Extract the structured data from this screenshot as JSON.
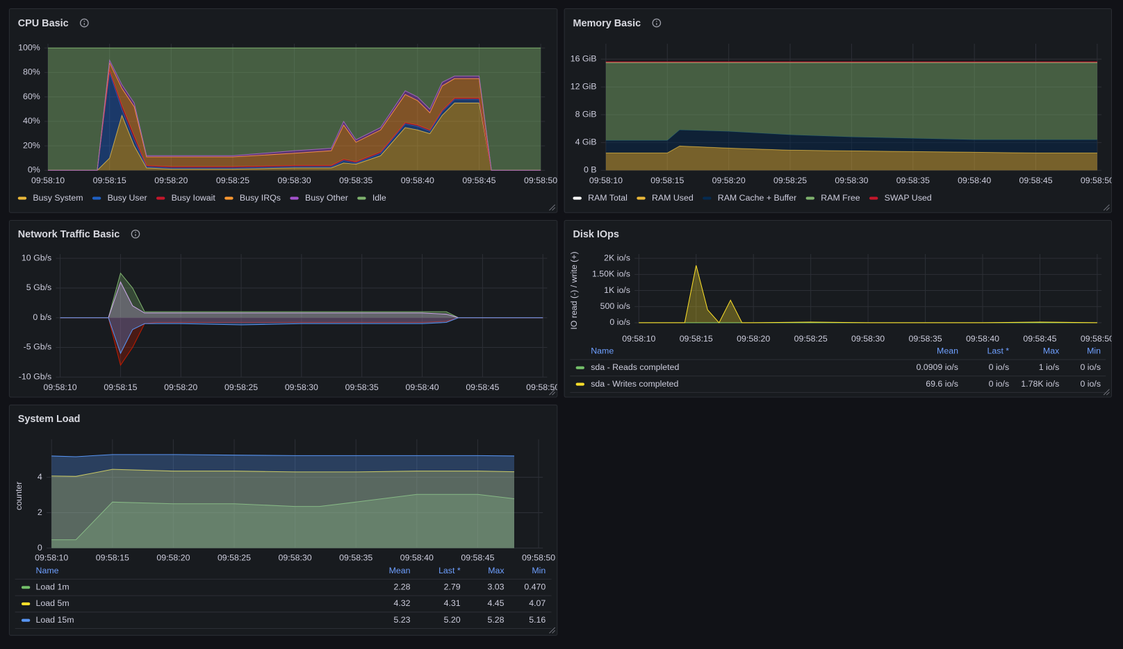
{
  "chart_data": [
    {
      "type": "area",
      "stacked": true,
      "title": "CPU Basic",
      "info_icon": true,
      "legend": "bottom",
      "x": [
        "09:58:10",
        "09:58:14",
        "09:58:15",
        "09:58:16",
        "09:58:17",
        "09:58:18",
        "09:58:20",
        "09:58:25",
        "09:58:30",
        "09:58:33",
        "09:58:34",
        "09:58:35",
        "09:58:37",
        "09:58:39",
        "09:58:40",
        "09:58:41",
        "09:58:42",
        "09:58:43",
        "09:58:45",
        "09:58:46",
        "09:58:50"
      ],
      "xlim": [
        "09:58:10",
        "09:58:50"
      ],
      "xticks": [
        "09:58:10",
        "09:58:15",
        "09:58:20",
        "09:58:25",
        "09:58:30",
        "09:58:35",
        "09:58:40",
        "09:58:45",
        "09:58:50"
      ],
      "ylim": [
        0,
        100
      ],
      "yticks": [
        {
          "value": 0,
          "label": "0%"
        },
        {
          "value": 20,
          "label": "20%"
        },
        {
          "value": 40,
          "label": "40%"
        },
        {
          "value": 60,
          "label": "60%"
        },
        {
          "value": 80,
          "label": "80%"
        },
        {
          "value": 100,
          "label": "100%"
        }
      ],
      "series": [
        {
          "name": "Busy System",
          "color": "#EAB839",
          "values": [
            0,
            0,
            10,
            45,
            20,
            2,
            1,
            1,
            2,
            2,
            6,
            5,
            12,
            35,
            33,
            30,
            45,
            55,
            55,
            0,
            0
          ]
        },
        {
          "name": "Busy User",
          "color": "#1F60C4",
          "values": [
            0,
            0,
            70,
            5,
            5,
            1,
            1,
            1,
            1,
            1,
            2,
            1,
            2,
            3,
            3,
            2,
            3,
            3,
            3,
            0,
            0
          ]
        },
        {
          "name": "Busy Iowait",
          "color": "#C4162A",
          "values": [
            0,
            0,
            2,
            3,
            3,
            1,
            1,
            1,
            1,
            1,
            1,
            1,
            1,
            1,
            1,
            1,
            1,
            1,
            1,
            0,
            0
          ]
        },
        {
          "name": "Busy IRQs",
          "color": "#FF9830",
          "values": [
            0,
            0,
            6,
            14,
            24,
            7,
            8,
            8,
            10,
            12,
            28,
            16,
            18,
            23,
            20,
            14,
            20,
            16,
            16,
            0,
            0
          ]
        },
        {
          "name": "Busy Other",
          "color": "#A352CC",
          "values": [
            0,
            0,
            2,
            3,
            3,
            1,
            1,
            1,
            2,
            2,
            3,
            2,
            2,
            3,
            3,
            3,
            3,
            2,
            2,
            0,
            0
          ]
        },
        {
          "name": "Idle",
          "color": "#7EB26D",
          "values": [
            100,
            100,
            10,
            30,
            45,
            88,
            88,
            88,
            84,
            82,
            60,
            75,
            65,
            35,
            40,
            50,
            28,
            23,
            23,
            100,
            100
          ]
        }
      ]
    },
    {
      "type": "area",
      "stacked": true,
      "title": "Memory Basic",
      "info_icon": true,
      "legend": "bottom",
      "x": [
        "09:58:10",
        "09:58:15",
        "09:58:16",
        "09:58:20",
        "09:58:25",
        "09:58:30",
        "09:58:35",
        "09:58:40",
        "09:58:45",
        "09:58:50"
      ],
      "xlim": [
        "09:58:10",
        "09:58:50"
      ],
      "xticks": [
        "09:58:10",
        "09:58:15",
        "09:58:20",
        "09:58:25",
        "09:58:30",
        "09:58:35",
        "09:58:40",
        "09:58:45",
        "09:58:50"
      ],
      "ylim": [
        0,
        17.6
      ],
      "yticks": [
        {
          "value": 0,
          "label": "0 B"
        },
        {
          "value": 4,
          "label": "4 GiB"
        },
        {
          "value": 8,
          "label": "8 GiB"
        },
        {
          "value": 12,
          "label": "12 GiB"
        },
        {
          "value": 16,
          "label": "16 GiB"
        }
      ],
      "series": [
        {
          "name": "RAM Total",
          "color": "#FFFFFF",
          "fill": false,
          "stack": false,
          "values": [
            15.5,
            15.5,
            15.5,
            15.5,
            15.5,
            15.5,
            15.5,
            15.5,
            15.5,
            15.5
          ]
        },
        {
          "name": "RAM Used",
          "color": "#EAB839",
          "values": [
            2.5,
            2.5,
            3.5,
            3.2,
            2.9,
            2.8,
            2.7,
            2.6,
            2.5,
            2.5
          ]
        },
        {
          "name": "RAM Cache + Buffer",
          "color": "#052B51",
          "values": [
            1.8,
            1.8,
            2.3,
            2.4,
            2.2,
            2.0,
            1.9,
            1.8,
            1.9,
            1.9
          ]
        },
        {
          "name": "RAM Free",
          "color": "#7EB26D",
          "values": [
            11.2,
            11.2,
            9.7,
            9.9,
            10.4,
            10.7,
            10.9,
            11.1,
            11.1,
            11.1
          ]
        },
        {
          "name": "SWAP Used",
          "color": "#C4162A",
          "values": [
            0.1,
            0.1,
            0.1,
            0.1,
            0.1,
            0.1,
            0.1,
            0.1,
            0.1,
            0.1
          ]
        }
      ]
    },
    {
      "type": "area",
      "stacked": false,
      "title": "Network Traffic Basic",
      "info_icon": true,
      "x": [
        "09:58:10",
        "09:58:14",
        "09:58:15",
        "09:58:16",
        "09:58:17",
        "09:58:18",
        "09:58:20",
        "09:58:25",
        "09:58:30",
        "09:58:35",
        "09:58:40",
        "09:58:42",
        "09:58:43",
        "09:58:50"
      ],
      "xlim": [
        "09:58:10",
        "09:58:50"
      ],
      "xticks": [
        "09:58:10",
        "09:58:15",
        "09:58:20",
        "09:58:25",
        "09:58:30",
        "09:58:35",
        "09:58:40",
        "09:58:45",
        "09:58:50"
      ],
      "ylim": [
        -10,
        10
      ],
      "yticks": [
        {
          "value": 10,
          "label": "10 Gb/s"
        },
        {
          "value": 5,
          "label": "5 Gb/s"
        },
        {
          "value": 0,
          "label": "0 b/s"
        },
        {
          "value": -5,
          "label": "-5 Gb/s"
        },
        {
          "value": -10,
          "label": "-10 Gb/s"
        }
      ],
      "series": [
        {
          "color": "#7EB26D",
          "values": [
            0,
            0,
            7.5,
            5,
            1,
            1,
            1,
            1,
            1,
            1,
            1,
            1,
            0,
            0
          ]
        },
        {
          "color": "#CCA8E8",
          "values": [
            0,
            0,
            6,
            2,
            0.8,
            0.8,
            0.8,
            0.8,
            0.8,
            0.8,
            0.8,
            0.6,
            0,
            0
          ]
        },
        {
          "color": "#BF1B00",
          "values": [
            0,
            0,
            -8,
            -5,
            -1,
            -0.8,
            -0.8,
            -0.8,
            -0.8,
            -0.8,
            -0.8,
            -0.6,
            0,
            0
          ]
        },
        {
          "color": "#5794F2",
          "values": [
            0,
            0,
            -6,
            -2,
            -1,
            -1,
            -1,
            -1.2,
            -1,
            -1,
            -1,
            -0.8,
            0,
            0
          ]
        }
      ]
    },
    {
      "type": "area",
      "stacked": false,
      "title": "Disk IOps",
      "ylabel": "IO read (-) / write (+)",
      "x": [
        "09:58:10",
        "09:58:14",
        "09:58:15",
        "09:58:16",
        "09:58:17",
        "09:58:18",
        "09:58:19",
        "09:58:20",
        "09:58:25",
        "09:58:30",
        "09:58:35",
        "09:58:40",
        "09:58:45",
        "09:58:50"
      ],
      "xlim": [
        "09:58:10",
        "09:58:50"
      ],
      "xticks": [
        "09:58:10",
        "09:58:15",
        "09:58:20",
        "09:58:25",
        "09:58:30",
        "09:58:35",
        "09:58:40",
        "09:58:45",
        "09:58:50"
      ],
      "ylim": [
        0,
        2000
      ],
      "yticks": [
        {
          "value": 0,
          "label": "0 io/s"
        },
        {
          "value": 500,
          "label": "500 io/s"
        },
        {
          "value": 1000,
          "label": "1K io/s"
        },
        {
          "value": 1500,
          "label": "1.50K io/s"
        },
        {
          "value": 2000,
          "label": "2K io/s"
        }
      ],
      "series": [
        {
          "name": "sda - Reads completed",
          "color": "#73BF69",
          "values": [
            0,
            0,
            1,
            0,
            0,
            0,
            0,
            0,
            0,
            0,
            0,
            0,
            0,
            0
          ]
        },
        {
          "name": "sda - Writes completed",
          "color": "#FADE2A",
          "values": [
            0,
            0,
            1780,
            400,
            0,
            700,
            0,
            0,
            20,
            0,
            0,
            0,
            20,
            0
          ]
        }
      ],
      "legend_table": {
        "columns": [
          "Name",
          "Mean",
          "Last *",
          "Max",
          "Min"
        ],
        "rows": [
          [
            "0.0909 io/s",
            "0 io/s",
            "1 io/s",
            "0 io/s"
          ],
          [
            "69.6 io/s",
            "0 io/s",
            "1.78K io/s",
            "0 io/s"
          ]
        ]
      }
    },
    {
      "type": "area",
      "stacked": false,
      "title": "System Load",
      "ylabel": "counter",
      "x": [
        "09:58:10",
        "09:58:12",
        "09:58:15",
        "09:58:20",
        "09:58:25",
        "09:58:30",
        "09:58:32",
        "09:58:35",
        "09:58:40",
        "09:58:45",
        "09:58:48"
      ],
      "xlim": [
        "09:58:10",
        "09:58:50"
      ],
      "xticks": [
        "09:58:10",
        "09:58:15",
        "09:58:20",
        "09:58:25",
        "09:58:30",
        "09:58:35",
        "09:58:40",
        "09:58:45",
        "09:58:50"
      ],
      "ylim": [
        0,
        5.9
      ],
      "yticks": [
        0,
        2,
        4
      ],
      "series": [
        {
          "name": "Load 1m",
          "color": "#73BF69",
          "values": [
            0.47,
            0.47,
            2.6,
            2.5,
            2.5,
            2.35,
            2.35,
            2.6,
            3.03,
            3.03,
            2.79
          ]
        },
        {
          "name": "Load 5m",
          "color": "#FADE2A",
          "values": [
            4.07,
            4.05,
            4.45,
            4.35,
            4.35,
            4.3,
            4.3,
            4.3,
            4.35,
            4.35,
            4.31
          ]
        },
        {
          "name": "Load 15m",
          "color": "#5794F2",
          "values": [
            5.2,
            5.16,
            5.28,
            5.28,
            5.25,
            5.22,
            5.22,
            5.22,
            5.22,
            5.22,
            5.2
          ]
        }
      ],
      "legend_table": {
        "columns": [
          "Name",
          "Mean",
          "Last *",
          "Max",
          "Min"
        ],
        "rows": [
          [
            "2.28",
            "2.79",
            "3.03",
            "0.470"
          ],
          [
            "4.32",
            "4.31",
            "4.45",
            "4.07"
          ],
          [
            "5.23",
            "5.20",
            "5.28",
            "5.16"
          ]
        ]
      }
    }
  ]
}
